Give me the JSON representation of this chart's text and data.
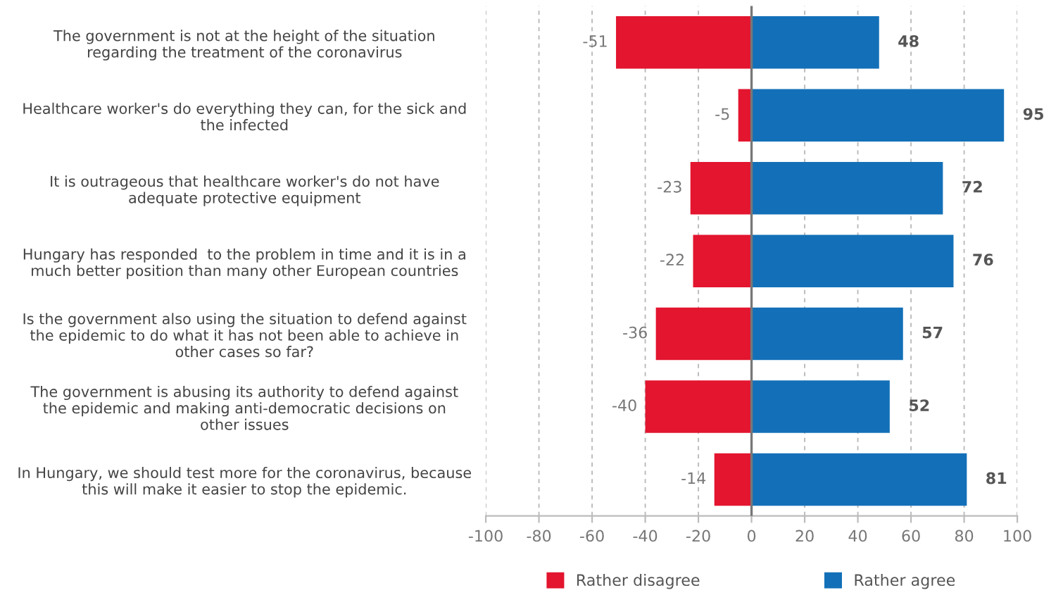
{
  "chart_data": {
    "type": "bar",
    "orientation": "horizontal",
    "stacked": true,
    "categories": [
      "The government is not at the height of the situation\nregarding the treatment of the coronavirus",
      "Healthcare worker's do everything they can, for the sick and\nthe infected",
      "It is outrageous that healthcare worker's do not have\nadequate protective equipment",
      "Hungary has responded  to the problem in time and it is in a\nmuch better position than many other European countries",
      "Is the government also using the situation to defend against\nthe epidemic to do what it has not been able to achieve in\nother cases so far?",
      "The government is abusing its authority to defend against\nthe epidemic and making anti-democratic decisions on\nother issues",
      "In Hungary, we should test more for the coronavirus, because\nthis will make it easier to stop the epidemic."
    ],
    "series": [
      {
        "name": "Rather disagree",
        "color": "#e3152f",
        "values": [
          -51,
          -5,
          -23,
          -22,
          -36,
          -40,
          -14
        ]
      },
      {
        "name": "Rather agree",
        "color": "#1370b8",
        "values": [
          48,
          95,
          72,
          76,
          57,
          52,
          81
        ]
      }
    ],
    "xlim": [
      -100,
      100
    ],
    "xticks": [
      -100,
      -80,
      -60,
      -40,
      -20,
      0,
      20,
      40,
      60,
      80,
      100
    ],
    "grid": "x",
    "legend": "bottom",
    "data_labels": true
  }
}
